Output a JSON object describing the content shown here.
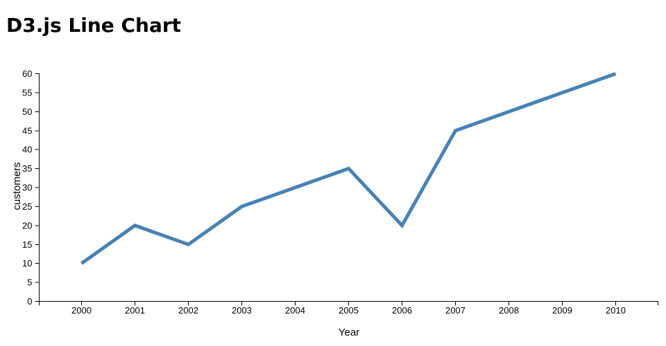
{
  "chart_data": {
    "type": "line",
    "title": "D3.js Line Chart",
    "xlabel": "Year",
    "ylabel": "customers",
    "x": [
      2000,
      2001,
      2002,
      2003,
      2004,
      2005,
      2006,
      2007,
      2008,
      2009,
      2010
    ],
    "series": [
      {
        "name": "customers",
        "values": [
          10,
          20,
          15,
          25,
          30,
          35,
          20,
          45,
          50,
          55,
          60
        ]
      }
    ],
    "x_ticks": [
      2000,
      2001,
      2002,
      2003,
      2004,
      2005,
      2006,
      2007,
      2008,
      2009,
      2010
    ],
    "y_ticks": [
      0,
      5,
      10,
      15,
      20,
      25,
      30,
      35,
      40,
      45,
      50,
      55,
      60
    ],
    "xlim": [
      2000,
      2010
    ],
    "ylim": [
      0,
      60
    ],
    "grid": false,
    "legend": "none",
    "line_color": "#4682b4",
    "line_width": 5,
    "axis_color": "#000000",
    "text_color": "#000000",
    "background": "#ffffff"
  }
}
